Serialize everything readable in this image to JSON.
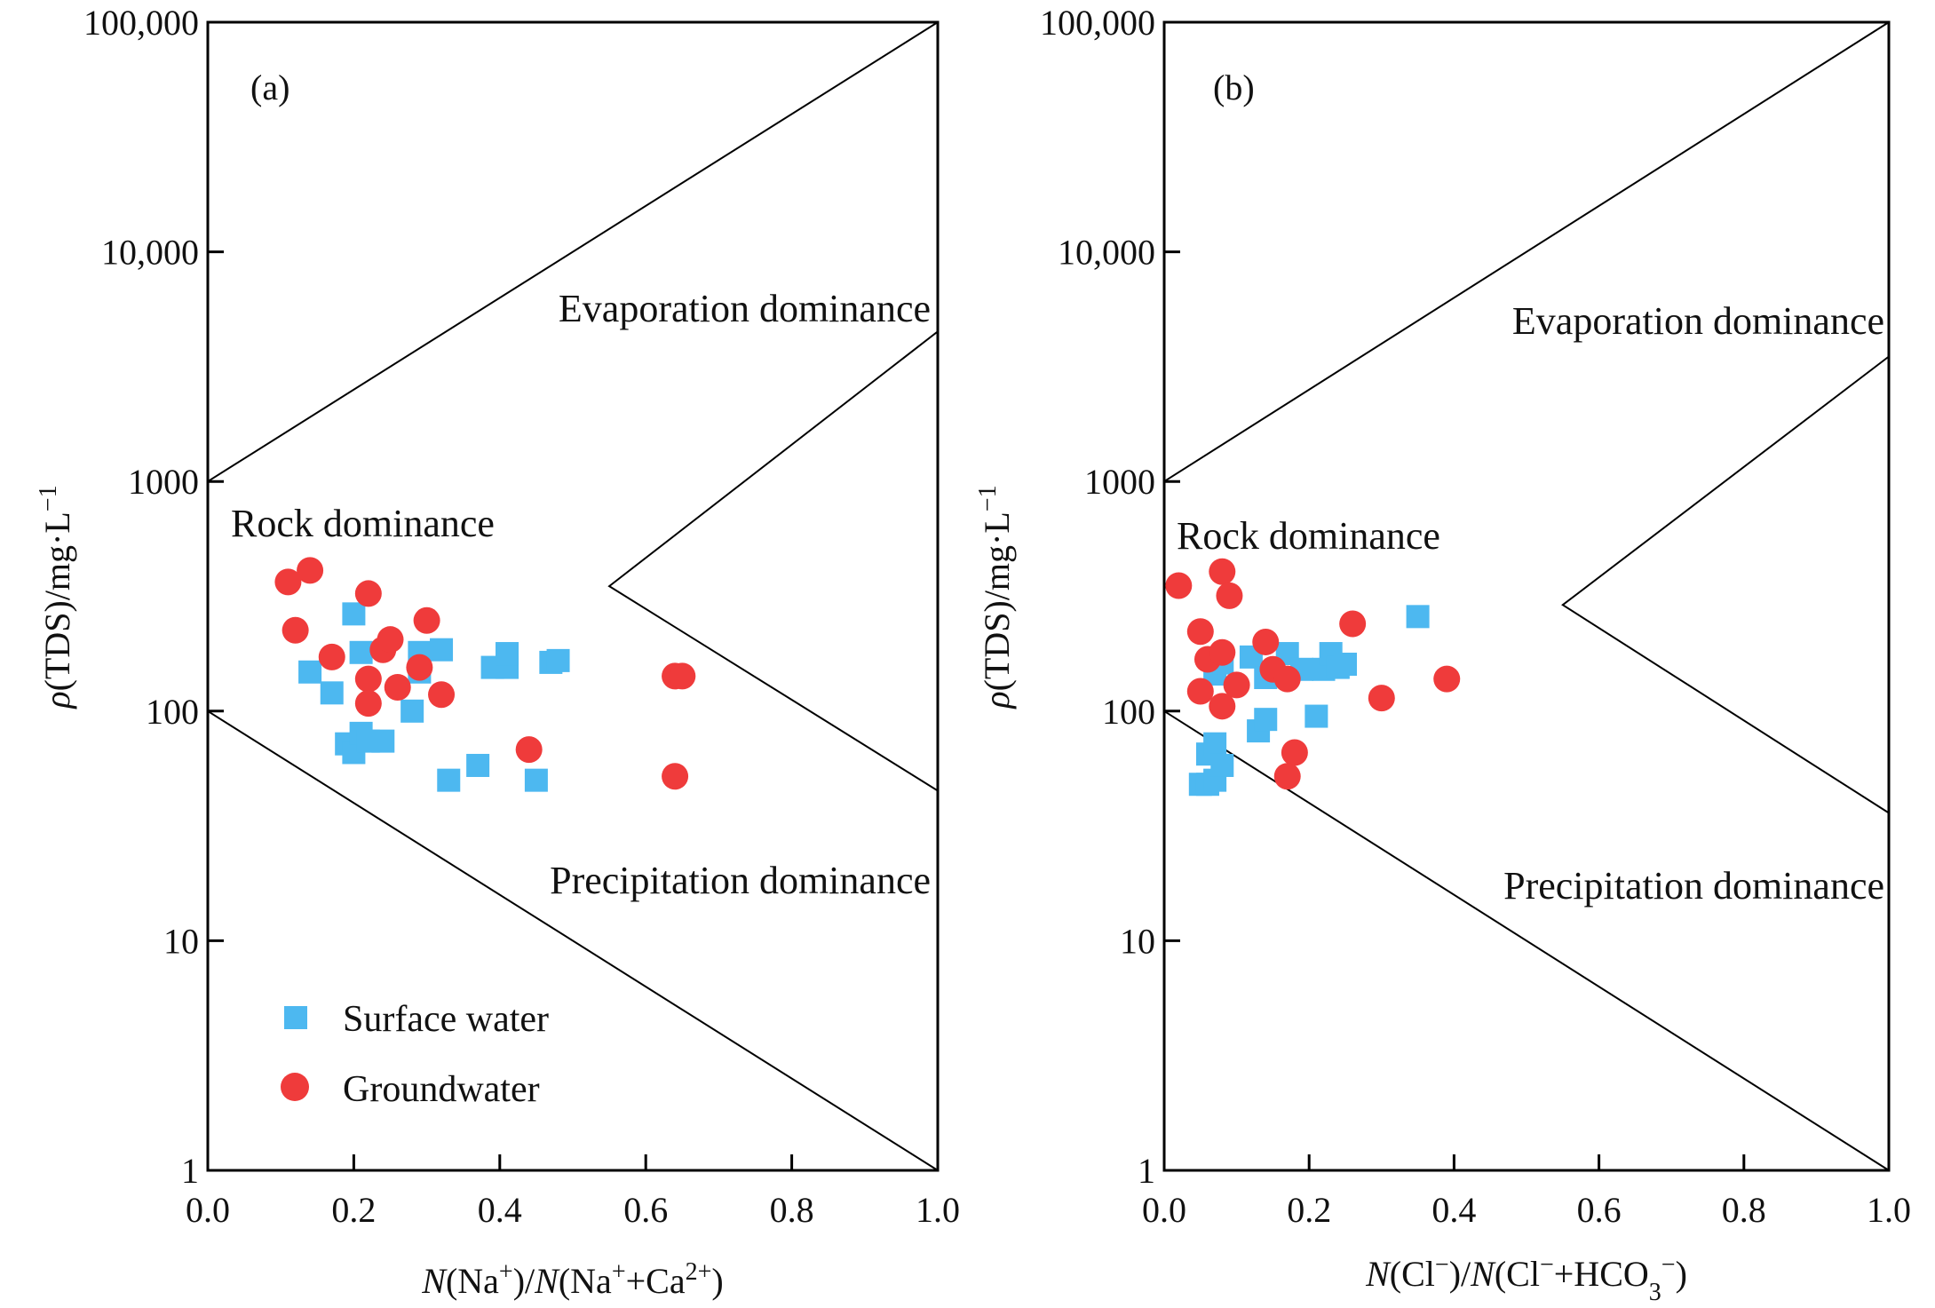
{
  "chart_data": [
    {
      "type": "scatter",
      "panel_label": "(a)",
      "xlabel_parts": {
        "n1": "N",
        "mid1": "(Na",
        "sup1": "+",
        "mid2": ")/",
        "n2": "N",
        "mid3": "(Na",
        "sup2": "+",
        "mid4": "+Ca",
        "sup3": "2+",
        "tail": ")"
      },
      "ylabel_parts": {
        "rho": "ρ",
        "body": "(TDS)/mg·L",
        "sup": "−1"
      },
      "x_range": [
        0.0,
        1.0
      ],
      "y_range": [
        1,
        100000
      ],
      "y_scale": "log",
      "x_ticks": [
        "0.0",
        "0.2",
        "0.4",
        "0.6",
        "0.8",
        "1.0"
      ],
      "y_ticks": [
        "1",
        "10",
        "100",
        "1000",
        "10,000",
        "100,000"
      ],
      "annotations": {
        "evaporation": "Evaporation dominance",
        "rock": "Rock dominance",
        "precipitation": "Precipitation dominance"
      },
      "boundaries": [
        {
          "name": "upper-line",
          "points": [
            [
              0.0,
              1000
            ],
            [
              1.0,
              110000
            ]
          ]
        },
        {
          "name": "chevron-line",
          "points": [
            [
              1.0,
              4500
            ],
            [
              0.55,
              350
            ],
            [
              1.0,
              45
            ]
          ]
        },
        {
          "name": "lower-line",
          "points": [
            [
              0.0,
              100
            ],
            [
              1.0,
              1
            ]
          ]
        }
      ],
      "legend": {
        "placement": "bottom-left",
        "surface": "Surface water",
        "ground": "Groundwater"
      },
      "series": [
        {
          "name": "Surface water",
          "marker": "square",
          "color": "#4db8f0",
          "points": [
            [
              0.14,
              148
            ],
            [
              0.17,
              120
            ],
            [
              0.2,
              265
            ],
            [
              0.21,
              180
            ],
            [
              0.19,
              72
            ],
            [
              0.2,
              66
            ],
            [
              0.21,
              80
            ],
            [
              0.22,
              74
            ],
            [
              0.24,
              74
            ],
            [
              0.29,
              180
            ],
            [
              0.28,
              100
            ],
            [
              0.29,
              148
            ],
            [
              0.32,
              185
            ],
            [
              0.33,
              50
            ],
            [
              0.37,
              58
            ],
            [
              0.39,
              155
            ],
            [
              0.41,
              155
            ],
            [
              0.41,
              178
            ],
            [
              0.45,
              50
            ],
            [
              0.47,
              163
            ],
            [
              0.48,
              166
            ]
          ]
        },
        {
          "name": "Groundwater",
          "marker": "circle",
          "color": "#ef3b3b",
          "points": [
            [
              0.11,
              365
            ],
            [
              0.14,
              410
            ],
            [
              0.12,
              225
            ],
            [
              0.17,
              172
            ],
            [
              0.22,
              325
            ],
            [
              0.24,
              185
            ],
            [
              0.25,
              205
            ],
            [
              0.22,
              138
            ],
            [
              0.22,
              108
            ],
            [
              0.26,
              127
            ],
            [
              0.29,
              155
            ],
            [
              0.3,
              248
            ],
            [
              0.32,
              118
            ],
            [
              0.44,
              68
            ],
            [
              0.64,
              142
            ],
            [
              0.65,
              142
            ],
            [
              0.64,
              52
            ]
          ]
        }
      ]
    },
    {
      "type": "scatter",
      "panel_label": "(b)",
      "xlabel_parts": {
        "n1": "N",
        "mid1": "(Cl",
        "sup1": "−",
        "mid2": ")/",
        "n2": "N",
        "mid3": "(Cl",
        "sup2": "−",
        "mid4": "+HCO",
        "sub": "3",
        "sup3": "−",
        "tail": ")"
      },
      "ylabel_parts": {
        "rho": "ρ",
        "body": "(TDS)/mg·L",
        "sup": "−1"
      },
      "x_range": [
        0.0,
        1.0
      ],
      "y_range": [
        1,
        100000
      ],
      "y_scale": "log",
      "x_ticks": [
        "0.0",
        "0.2",
        "0.4",
        "0.6",
        "0.8",
        "1.0"
      ],
      "y_ticks": [
        "1",
        "10",
        "100",
        "1000",
        "10,000",
        "100,000"
      ],
      "annotations": {
        "evaporation": "Evaporation dominance",
        "rock": "Rock dominance",
        "precipitation": "Precipitation dominance"
      },
      "boundaries": [
        {
          "name": "upper-line",
          "points": [
            [
              0.0,
              1000
            ],
            [
              1.0,
              110000
            ]
          ]
        },
        {
          "name": "chevron-line",
          "points": [
            [
              1.0,
              3500
            ],
            [
              0.55,
              290
            ],
            [
              1.0,
              36
            ]
          ]
        },
        {
          "name": "lower-line",
          "points": [
            [
              0.0,
              100
            ],
            [
              1.0,
              1
            ]
          ]
        }
      ],
      "series": [
        {
          "name": "Surface water",
          "marker": "square",
          "color": "#4db8f0",
          "points": [
            [
              0.05,
              48
            ],
            [
              0.06,
              48
            ],
            [
              0.07,
              50
            ],
            [
              0.06,
              65
            ],
            [
              0.07,
              72
            ],
            [
              0.08,
              58
            ],
            [
              0.07,
              145
            ],
            [
              0.08,
              162
            ],
            [
              0.12,
              172
            ],
            [
              0.13,
              82
            ],
            [
              0.14,
              92
            ],
            [
              0.14,
              140
            ],
            [
              0.17,
              178
            ],
            [
              0.19,
              152
            ],
            [
              0.21,
              95
            ],
            [
              0.22,
              152
            ],
            [
              0.23,
              178
            ],
            [
              0.24,
              155
            ],
            [
              0.25,
              160
            ],
            [
              0.35,
              258
            ]
          ]
        },
        {
          "name": "Groundwater",
          "marker": "circle",
          "color": "#ef3b3b",
          "points": [
            [
              0.02,
              352
            ],
            [
              0.08,
              405
            ],
            [
              0.09,
              318
            ],
            [
              0.05,
              222
            ],
            [
              0.06,
              168
            ],
            [
              0.08,
              180
            ],
            [
              0.05,
              122
            ],
            [
              0.08,
              105
            ],
            [
              0.1,
              130
            ],
            [
              0.14,
              200
            ],
            [
              0.15,
              152
            ],
            [
              0.17,
              138
            ],
            [
              0.18,
              66
            ],
            [
              0.17,
              52
            ],
            [
              0.26,
              240
            ],
            [
              0.3,
              114
            ],
            [
              0.39,
              138
            ]
          ]
        }
      ]
    }
  ]
}
